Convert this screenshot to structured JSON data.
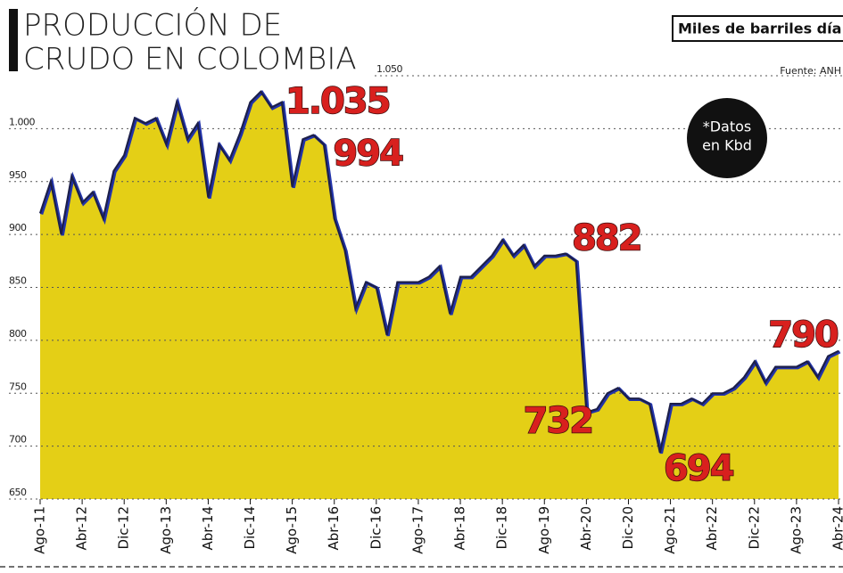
{
  "chart_data": {
    "type": "area",
    "title": [
      "PRODUCCIÓN DE",
      "CRUDO EN COLOMBIA"
    ],
    "unit_label": "Miles de barriles día",
    "source": "Fuente: ANH",
    "note": [
      "*Datos",
      "en Kbd"
    ],
    "categories": [
      "Ago-11",
      null,
      null,
      null,
      "Abr-12",
      null,
      null,
      null,
      "Dic-12",
      null,
      null,
      null,
      "Ago-13",
      null,
      null,
      null,
      "Abr-14",
      null,
      null,
      null,
      "Dic-14",
      null,
      null,
      null,
      "Ago-15",
      null,
      null,
      null,
      "Abr-16",
      null,
      null,
      null,
      "Dic-16",
      null,
      null,
      null,
      "Ago-17",
      null,
      null,
      null,
      "Abr-18",
      null,
      null,
      null,
      "Dic-18",
      null,
      null,
      null,
      "Ago-19",
      null,
      null,
      null,
      "Abr-20",
      null,
      null,
      null,
      "Dic-20",
      null,
      null,
      null,
      "Ago-21",
      null,
      null,
      null,
      "Abr-22",
      null,
      null,
      null,
      "Dic-22",
      null,
      null,
      null,
      "Ago-23",
      null,
      null,
      null,
      "Abr-24"
    ],
    "values": [
      920,
      950,
      900,
      955,
      930,
      940,
      915,
      960,
      975,
      1010,
      1005,
      1010,
      985,
      1025,
      990,
      1005,
      935,
      985,
      970,
      995,
      1025,
      1035,
      1020,
      1025,
      945,
      990,
      994,
      985,
      915,
      885,
      830,
      855,
      850,
      805,
      855,
      855,
      855,
      860,
      870,
      825,
      860,
      860,
      870,
      880,
      895,
      880,
      890,
      870,
      880,
      880,
      882,
      875,
      732,
      735,
      750,
      755,
      745,
      745,
      740,
      694,
      740,
      740,
      745,
      740,
      750,
      750,
      755,
      765,
      780,
      760,
      775,
      775,
      775,
      780,
      765,
      785,
      790
    ],
    "value_labels": [
      null,
      null,
      null,
      null,
      null,
      null,
      null,
      null,
      null,
      null,
      null,
      null,
      null,
      null,
      null,
      null,
      null,
      null,
      null,
      null,
      null,
      "1.035",
      null,
      null,
      null,
      null,
      "994",
      null,
      null,
      null,
      null,
      null,
      null,
      null,
      null,
      null,
      null,
      null,
      null,
      null,
      null,
      null,
      null,
      null,
      null,
      null,
      null,
      null,
      null,
      null,
      "882",
      null,
      "732",
      null,
      null,
      null,
      null,
      null,
      null,
      "694",
      null,
      null,
      null,
      null,
      null,
      null,
      null,
      null,
      null,
      null,
      null,
      null,
      null,
      null,
      null,
      null,
      "790"
    ],
    "color": "#e4cf16",
    "line_color": "#1c1f4a",
    "ylim": [
      650,
      1050
    ],
    "yticks": [
      650,
      700,
      750,
      800,
      850,
      900,
      950,
      {
        "value": 1000,
        "label": "1.000"
      },
      {
        "value": 1050,
        "label": "1.050"
      }
    ],
    "grid": true
  }
}
